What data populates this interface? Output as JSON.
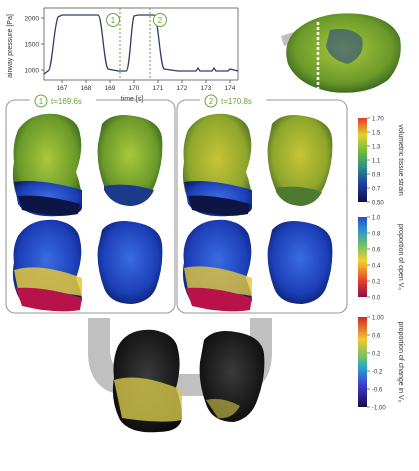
{
  "top_chart": {
    "ylabel": "airway pressure [Pa]",
    "xlabel": "time [s]",
    "y_ticks": [
      "2000",
      "1500",
      "1000"
    ],
    "x_ticks": [
      "167",
      "168",
      "169",
      "170",
      "171",
      "172",
      "173",
      "174"
    ],
    "markers": [
      "1",
      "2"
    ],
    "line_color": "#2c3e66",
    "marker_color": "#6aa33a"
  },
  "panels": [
    {
      "number": "1",
      "title": "t=169.6s"
    },
    {
      "number": "2",
      "title": "t=170.8s"
    }
  ],
  "colorbars": [
    {
      "label": "volumetric tissue strain",
      "ticks": [
        "1.70",
        "1.5",
        "1.3",
        "1.1",
        "0.9",
        "0.7",
        "0.50"
      ]
    },
    {
      "label": "proportion of open V₀",
      "ticks": [
        "1.0",
        "0.8",
        "0.6",
        "0.4",
        "0.2",
        "0.0"
      ]
    },
    {
      "label": "proportion of change in V₀",
      "ticks": [
        "1.00",
        "0.6",
        "0.2",
        "-0.2",
        "-0.6",
        "-1.00"
      ]
    }
  ],
  "colors": {
    "panel_border": "#9a9a9a",
    "arrow_gray": "#c0c0c0",
    "accent_green": "#6aa33a"
  }
}
